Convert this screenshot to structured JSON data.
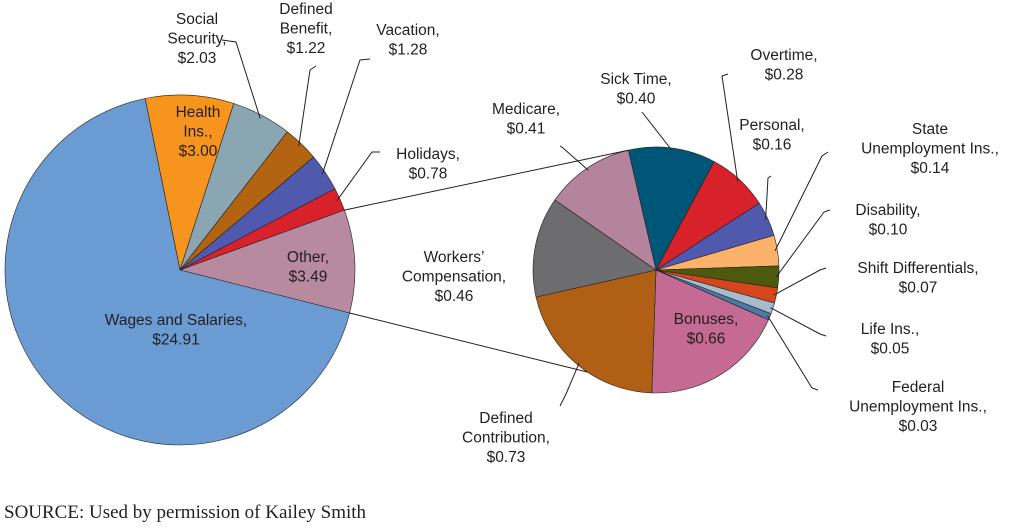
{
  "chart_data": [
    {
      "type": "pie",
      "slices": [
        {
          "label": [
            "Health",
            "Ins.,",
            "$3.00"
          ],
          "value": 3.0,
          "color": "#f7941d"
        },
        {
          "label": [
            "Social",
            "Security,",
            "$2.03"
          ],
          "value": 2.03,
          "color": "#8ba6b3"
        },
        {
          "label": [
            "Defined",
            "Benefit,",
            "$1.22"
          ],
          "value": 1.22,
          "color": "#b26412"
        },
        {
          "label": [
            "Vacation,",
            "$1.28"
          ],
          "value": 1.28,
          "color": "#4f5aae"
        },
        {
          "label": [
            "Holidays,",
            "$0.78"
          ],
          "value": 0.78,
          "color": "#d7222c"
        },
        {
          "label": [
            "Other,",
            "$3.49"
          ],
          "value": 3.49,
          "color": "#b88aa0"
        },
        {
          "label": [
            "Wages and Salaries,",
            "$24.91"
          ],
          "value": 24.91,
          "color": "#6a9cd3"
        }
      ]
    },
    {
      "type": "pie",
      "slices": [
        {
          "label": [
            "Sick Time,",
            "$0.40"
          ],
          "value": 0.4,
          "color": "#005677"
        },
        {
          "label": [
            "Overtime,",
            "$0.28"
          ],
          "value": 0.28,
          "color": "#d7222c"
        },
        {
          "label": [
            "Personal,",
            "$0.16"
          ],
          "value": 0.16,
          "color": "#4f5aae"
        },
        {
          "label": [
            "State",
            "Unemployment Ins.,",
            "$0.14"
          ],
          "value": 0.14,
          "color": "#fbb36b"
        },
        {
          "label": [
            "Disability,",
            "$0.10"
          ],
          "value": 0.1,
          "color": "#4c5a0e"
        },
        {
          "label": [
            "Shift Differentials,",
            "$0.07"
          ],
          "value": 0.07,
          "color": "#d5461c"
        },
        {
          "label": [
            "Life Ins.,",
            "$0.05"
          ],
          "value": 0.05,
          "color": "#a7bccb"
        },
        {
          "label": [
            "Federal",
            "Unemployment Ins.,",
            "$0.03"
          ],
          "value": 0.03,
          "color": "#4a7aa8"
        },
        {
          "label": [
            "Bonuses,",
            "$0.66"
          ],
          "value": 0.66,
          "color": "#c46a93"
        },
        {
          "label": [
            "Defined",
            "Contribution,",
            "$0.73"
          ],
          "value": 0.73,
          "color": "#b06014"
        },
        {
          "label": [
            "Workers’",
            "Compensation,",
            "$0.46"
          ],
          "value": 0.46,
          "color": "#6d6d6f"
        },
        {
          "label": [
            "Medicare,",
            "$0.41"
          ],
          "value": 0.41,
          "color": "#b3849c"
        }
      ]
    }
  ],
  "source_text": "SOURCE: Used by permission of Kailey Smith"
}
